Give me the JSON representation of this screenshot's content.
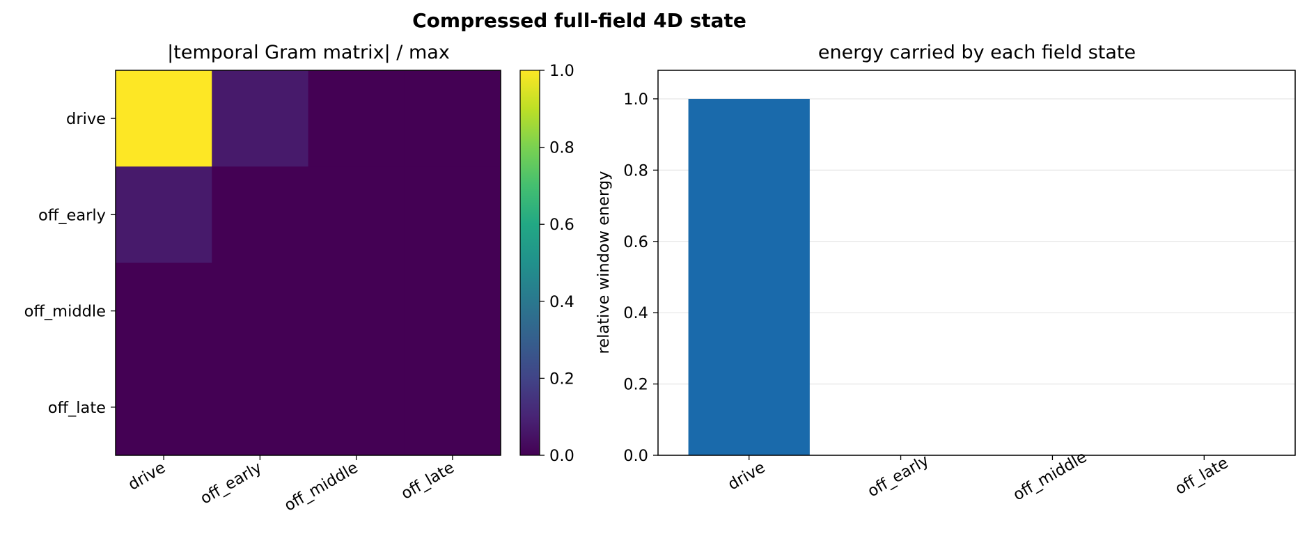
{
  "figure": {
    "title": "Compressed full-field 4D state"
  },
  "chart_data": [
    {
      "type": "heatmap",
      "title": "|temporal Gram matrix| / max",
      "x_categories": [
        "drive",
        "off_early",
        "off_middle",
        "off_late"
      ],
      "y_categories": [
        "drive",
        "off_early",
        "off_middle",
        "off_late"
      ],
      "values": [
        [
          1.0,
          0.07,
          0.0,
          0.0
        ],
        [
          0.07,
          0.0,
          0.0,
          0.0
        ],
        [
          0.0,
          0.0,
          0.0,
          0.0
        ],
        [
          0.0,
          0.0,
          0.0,
          0.0
        ]
      ],
      "colormap": "viridis",
      "colorbar": {
        "range": [
          0.0,
          1.0
        ],
        "ticks": [
          "0.0",
          "0.2",
          "0.4",
          "0.6",
          "0.8",
          "1.0"
        ]
      }
    },
    {
      "type": "bar",
      "title": "energy carried by each field state",
      "categories": [
        "drive",
        "off_early",
        "off_middle",
        "off_late"
      ],
      "values": [
        1.0,
        0.0,
        0.0,
        0.0
      ],
      "xlabel": "",
      "ylabel": "relative window energy",
      "ylim": [
        0.0,
        1.08
      ],
      "yticks": [
        "0.0",
        "0.2",
        "0.4",
        "0.6",
        "0.8",
        "1.0"
      ],
      "grid": "y",
      "bar_color": "#1a6aab"
    }
  ]
}
